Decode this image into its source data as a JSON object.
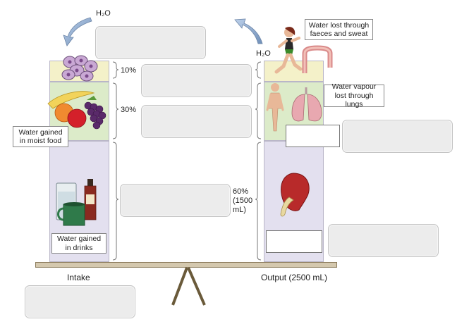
{
  "formula": {
    "h2o_left": "H₂O",
    "h2o_right": "H₂O"
  },
  "percentages": {
    "p10": "10%",
    "p30": "30%",
    "p60_line1": "60%",
    "p60_line2": "(1500",
    "p60_line3": "mL)"
  },
  "callouts": {
    "faeces_sweat": "Water lost through faeces and sweat",
    "lungs": "Water vapour lost through lungs",
    "moist_food": "Water gained in moist food",
    "drinks": "Water gained in drinks"
  },
  "labels": {
    "intake": "Intake",
    "output": "Output (2500 mL)"
  },
  "colors": {
    "yellow": "#f4f1c9",
    "green": "#dcebc9",
    "purple": "#e3e0ef",
    "beam": "#d4c8ae",
    "blank": "#ececec"
  },
  "icons": [
    "cells-icon",
    "fruit-icon",
    "drinks-icon",
    "runner-icon",
    "intestine-icon",
    "body-lungs-icon",
    "kidney-icon",
    "arrow-icon"
  ]
}
